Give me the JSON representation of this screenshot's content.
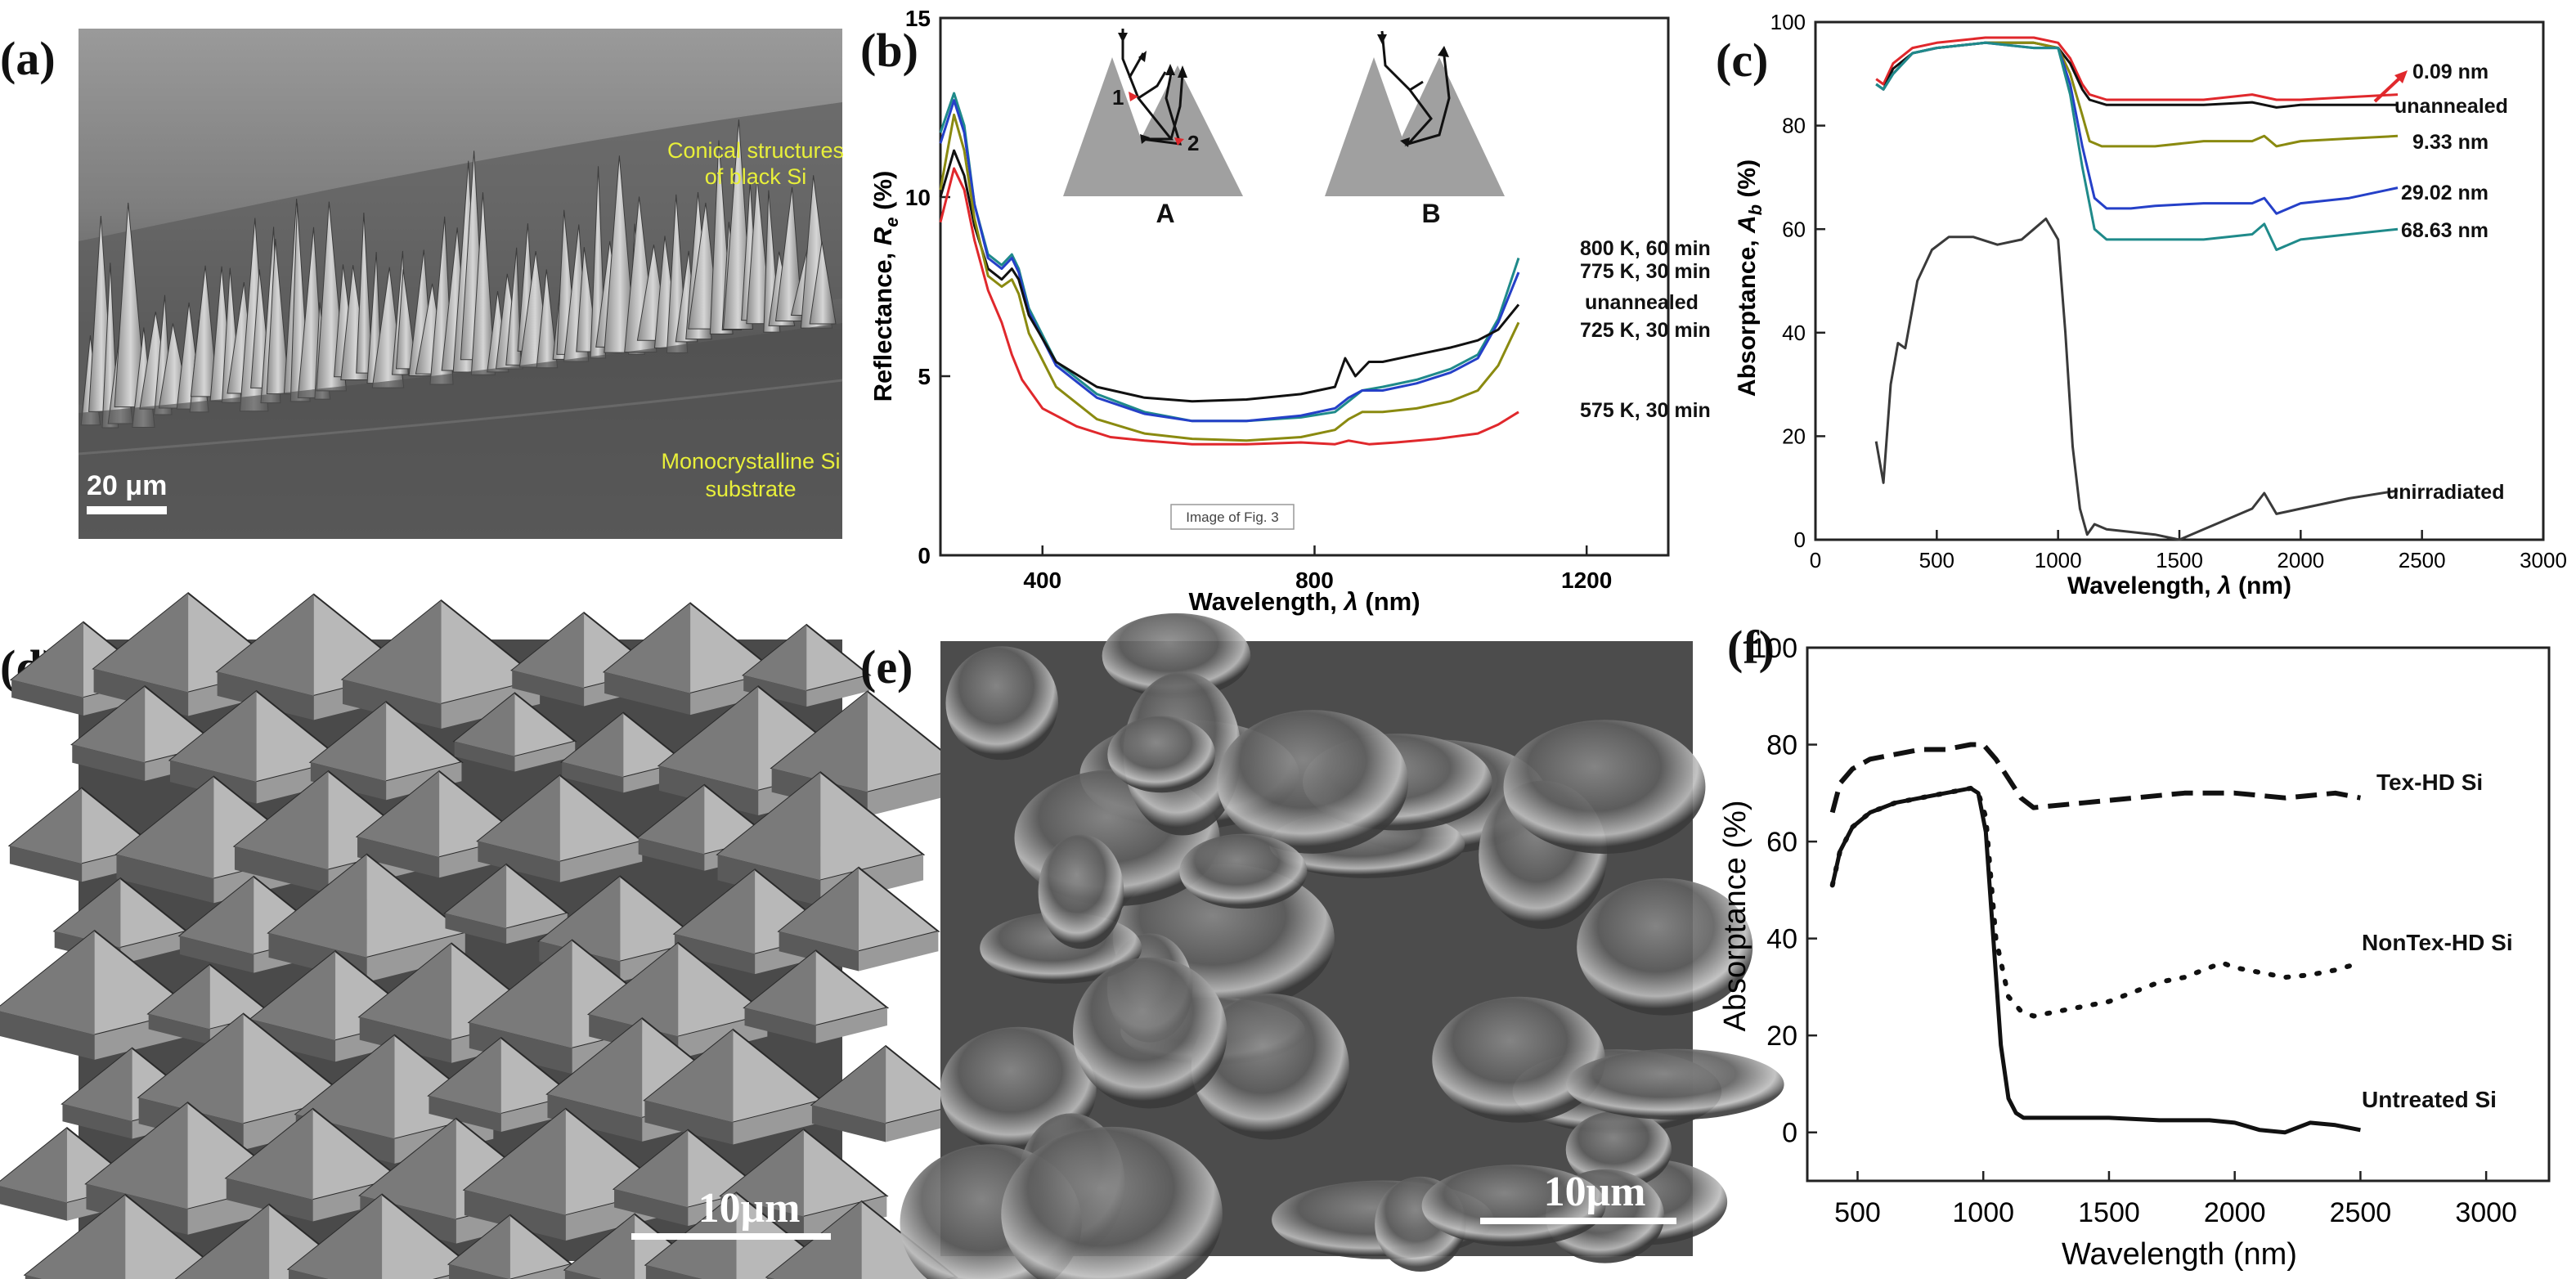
{
  "panels": {
    "a": {
      "label": "(a)",
      "annot_top_1": "Conical structures",
      "annot_top_2": "of black Si",
      "annot_bottom_1": "Monocrystalline Si",
      "annot_bottom_2": "substrate",
      "scale": "20 μm"
    },
    "d": {
      "label": "(d)",
      "scale": "10μm"
    },
    "e": {
      "label": "(e)",
      "scale": "10μm"
    }
  },
  "chart_b": {
    "label": "(b)",
    "ylabel_prefix": "Reflectance, ",
    "ylabel_var": "R",
    "ylabel_sub": "e",
    "ylabel_unit": " (%)",
    "xlabel_prefix": "Wavelength, ",
    "xlabel_var": "λ",
    "xlabel_unit": " (nm)",
    "inset_A": "A",
    "inset_B": "B",
    "inset_1": "1",
    "inset_2": "2",
    "watermark": "Image of Fig. 3"
  },
  "chart_c": {
    "label": "(c)",
    "ylabel_prefix": "Absorptance, ",
    "ylabel_var": "A",
    "ylabel_sub": "b",
    "ylabel_unit": " (%)",
    "xlabel_prefix": "Wavelength, ",
    "xlabel_var": "λ",
    "xlabel_unit": " (nm)"
  },
  "chart_f": {
    "label": "(f)",
    "ylabel": "Absorptance (%)",
    "xlabel": "Wavelength (nm)"
  },
  "chart_data": [
    {
      "id": "b",
      "type": "line",
      "xlim": [
        250,
        1320
      ],
      "ylim": [
        0,
        15
      ],
      "xticks": [
        400,
        800,
        1200
      ],
      "yticks": [
        0,
        5,
        10,
        15
      ],
      "series": [
        {
          "name": "800 K, 60 min",
          "color": "#1f8a8a",
          "x": [
            250,
            270,
            285,
            300,
            320,
            340,
            355,
            365,
            380,
            420,
            480,
            550,
            620,
            700,
            780,
            830,
            850,
            870,
            900,
            950,
            1000,
            1040,
            1070,
            1100
          ],
          "y": [
            11.8,
            12.9,
            12.0,
            9.8,
            8.4,
            8.1,
            8.4,
            8.0,
            6.9,
            5.4,
            4.5,
            4.0,
            3.75,
            3.75,
            3.85,
            4.0,
            4.3,
            4.6,
            4.7,
            4.9,
            5.2,
            5.6,
            6.6,
            8.3
          ]
        },
        {
          "name": "775 K, 30 min",
          "color": "#2540c8",
          "x": [
            250,
            270,
            285,
            300,
            320,
            340,
            355,
            365,
            380,
            420,
            480,
            550,
            620,
            700,
            780,
            830,
            850,
            870,
            900,
            950,
            1000,
            1040,
            1070,
            1100
          ],
          "y": [
            11.5,
            12.7,
            11.8,
            9.8,
            8.3,
            8.0,
            8.3,
            7.9,
            6.8,
            5.3,
            4.4,
            3.95,
            3.75,
            3.75,
            3.9,
            4.1,
            4.4,
            4.6,
            4.6,
            4.8,
            5.1,
            5.5,
            6.5,
            7.9
          ]
        },
        {
          "name": "unannealed",
          "color": "#111111",
          "x": [
            250,
            270,
            285,
            300,
            320,
            340,
            355,
            365,
            380,
            420,
            480,
            550,
            620,
            700,
            780,
            830,
            845,
            860,
            880,
            900,
            950,
            1000,
            1040,
            1070,
            1100
          ],
          "y": [
            10.0,
            11.3,
            10.6,
            9.2,
            8.0,
            7.7,
            8.0,
            7.7,
            6.7,
            5.4,
            4.7,
            4.4,
            4.3,
            4.35,
            4.5,
            4.7,
            5.5,
            5.0,
            5.4,
            5.4,
            5.6,
            5.8,
            6.0,
            6.3,
            7.0
          ]
        },
        {
          "name": "725 K, 30 min",
          "color": "#8a8a10",
          "x": [
            250,
            270,
            285,
            300,
            320,
            340,
            355,
            365,
            380,
            420,
            480,
            550,
            620,
            700,
            780,
            830,
            850,
            870,
            900,
            950,
            1000,
            1040,
            1070,
            1100
          ],
          "y": [
            10.2,
            12.3,
            11.3,
            9.4,
            7.8,
            7.5,
            7.7,
            7.3,
            6.2,
            4.7,
            3.8,
            3.4,
            3.25,
            3.2,
            3.3,
            3.5,
            3.8,
            4.0,
            4.0,
            4.1,
            4.3,
            4.6,
            5.3,
            6.5
          ]
        },
        {
          "name": "575 K, 30 min",
          "color": "#e0282c",
          "x": [
            250,
            270,
            285,
            300,
            320,
            340,
            355,
            370,
            400,
            450,
            500,
            550,
            620,
            700,
            780,
            830,
            850,
            880,
            920,
            980,
            1040,
            1070,
            1100
          ],
          "y": [
            9.3,
            10.8,
            10.2,
            8.8,
            7.4,
            6.5,
            5.6,
            4.9,
            4.1,
            3.6,
            3.3,
            3.2,
            3.1,
            3.1,
            3.15,
            3.1,
            3.2,
            3.1,
            3.15,
            3.25,
            3.4,
            3.65,
            4.0
          ]
        }
      ]
    },
    {
      "id": "c",
      "type": "line",
      "xlim": [
        0,
        3000
      ],
      "ylim": [
        0,
        100
      ],
      "xticks": [
        0,
        500,
        1000,
        1500,
        2000,
        2500,
        3000
      ],
      "yticks": [
        0,
        20,
        40,
        60,
        80,
        100
      ],
      "series": [
        {
          "name": "0.09 nm",
          "color": "#e0282c",
          "x": [
            250,
            280,
            320,
            400,
            500,
            700,
            900,
            1000,
            1050,
            1100,
            1130,
            1200,
            1400,
            1600,
            1800,
            1900,
            2000,
            2200,
            2400
          ],
          "y": [
            89,
            88,
            92,
            95,
            96,
            97,
            97,
            96,
            93,
            88,
            86,
            85,
            85,
            85,
            86,
            85,
            85,
            85.5,
            86
          ]
        },
        {
          "name": "unannealed",
          "color": "#111111",
          "x": [
            250,
            280,
            320,
            400,
            500,
            700,
            900,
            1000,
            1050,
            1100,
            1130,
            1200,
            1400,
            1600,
            1800,
            1900,
            2000,
            2200,
            2400
          ],
          "y": [
            88,
            87,
            91,
            94,
            95,
            96,
            96,
            95,
            92,
            87,
            85,
            84,
            84,
            84,
            84.5,
            83.5,
            84,
            84,
            84
          ]
        },
        {
          "name": "9.33 nm",
          "color": "#8a8a10",
          "x": [
            250,
            280,
            320,
            400,
            500,
            700,
            900,
            1000,
            1050,
            1100,
            1130,
            1180,
            1400,
            1600,
            1800,
            1850,
            1900,
            2000,
            2200,
            2400
          ],
          "y": [
            88,
            87,
            90,
            94,
            95,
            96,
            96,
            95,
            90,
            82,
            77,
            76,
            76,
            77,
            77,
            78,
            76,
            77,
            77.5,
            78
          ]
        },
        {
          "name": "29.02 nm",
          "color": "#2540c8",
          "x": [
            250,
            280,
            320,
            400,
            500,
            700,
            900,
            1000,
            1050,
            1100,
            1150,
            1200,
            1300,
            1400,
            1600,
            1800,
            1850,
            1900,
            2000,
            2200,
            2400
          ],
          "y": [
            88,
            87,
            90,
            94,
            95,
            96,
            95,
            95,
            88,
            76,
            66,
            64,
            64,
            64.5,
            65,
            65,
            66,
            63,
            65,
            66,
            68
          ]
        },
        {
          "name": "68.63 nm",
          "color": "#1f8a8a",
          "x": [
            250,
            280,
            320,
            400,
            500,
            700,
            900,
            1000,
            1050,
            1100,
            1150,
            1200,
            1300,
            1400,
            1600,
            1800,
            1850,
            1900,
            2000,
            2200,
            2400
          ],
          "y": [
            88,
            87,
            90,
            94,
            95,
            96,
            95,
            95,
            86,
            72,
            60,
            58,
            58,
            58,
            58,
            59,
            61,
            56,
            58,
            59,
            60
          ]
        },
        {
          "name": "unirradiated",
          "color": "#3a3a3a",
          "x": [
            250,
            280,
            310,
            340,
            370,
            420,
            480,
            550,
            650,
            750,
            850,
            900,
            950,
            1000,
            1030,
            1060,
            1090,
            1120,
            1150,
            1200,
            1300,
            1400,
            1500,
            1600,
            1800,
            1850,
            1900,
            2000,
            2200,
            2400
          ],
          "y": [
            19,
            11,
            30,
            38,
            37,
            50,
            56,
            58.5,
            58.5,
            57,
            58,
            60,
            62,
            58,
            40,
            18,
            6,
            1,
            3,
            2,
            1.5,
            1,
            0,
            2,
            6,
            9,
            5,
            6,
            8,
            9.5
          ]
        }
      ]
    },
    {
      "id": "f",
      "type": "line",
      "xlim": [
        300,
        3250
      ],
      "ylim": [
        -10,
        100
      ],
      "xticks": [
        500,
        1000,
        1500,
        2000,
        2500,
        3000
      ],
      "yticks": [
        0,
        20,
        40,
        60,
        80,
        100
      ],
      "series": [
        {
          "name": "Tex-HD Si",
          "style": "dashed",
          "x": [
            400,
            430,
            480,
            550,
            650,
            750,
            850,
            950,
            1000,
            1050,
            1100,
            1150,
            1200,
            1400,
            1600,
            1800,
            2000,
            2200,
            2400,
            2500
          ],
          "y": [
            66,
            72,
            75,
            77,
            78,
            79,
            79,
            80,
            80,
            77,
            73,
            69,
            67,
            68,
            69,
            70,
            70,
            69,
            70,
            69
          ]
        },
        {
          "name": "NonTex-HD Si",
          "style": "dotted",
          "x": [
            400,
            430,
            480,
            550,
            650,
            750,
            850,
            950,
            980,
            1010,
            1050,
            1100,
            1150,
            1200,
            1300,
            1400,
            1500,
            1600,
            1700,
            1800,
            1900,
            1950,
            2000,
            2100,
            2200,
            2300,
            2400,
            2500
          ],
          "y": [
            51,
            58,
            63,
            66,
            68,
            69,
            70,
            71,
            70,
            65,
            40,
            28,
            25,
            24,
            25,
            26,
            27,
            29,
            31,
            32,
            34,
            35,
            34,
            33,
            32,
            32.5,
            33.5,
            35
          ]
        },
        {
          "name": "Untreated Si",
          "style": "solid",
          "x": [
            400,
            430,
            480,
            550,
            650,
            750,
            850,
            950,
            980,
            1010,
            1040,
            1070,
            1100,
            1130,
            1160,
            1200,
            1300,
            1500,
            1700,
            1900,
            2000,
            2100,
            2200,
            2250,
            2300,
            2400,
            2500
          ],
          "y": [
            51,
            58,
            63,
            66,
            68,
            69,
            70,
            71,
            70,
            62,
            40,
            18,
            7,
            4,
            3,
            3,
            3,
            3,
            2.5,
            2.5,
            2,
            0.5,
            0,
            1,
            2,
            1.5,
            0.5
          ]
        }
      ]
    }
  ]
}
